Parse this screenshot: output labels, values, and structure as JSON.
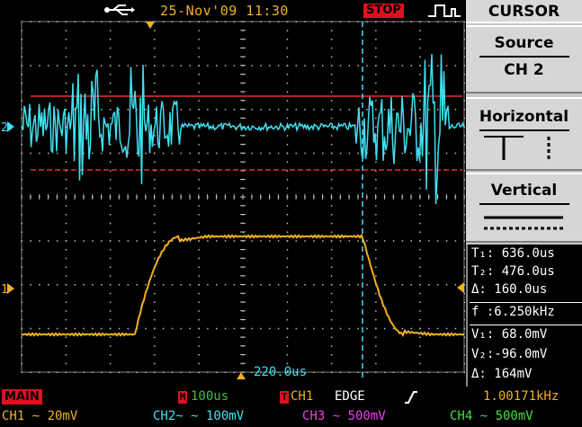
{
  "header": {
    "usb_icon": "usb-icon",
    "datetime": "25-Nov'09 11:30",
    "run_state": "STOP",
    "trigger_mode_icon": "pulse-waveform-icon"
  },
  "menu": {
    "title": "CURSOR",
    "items": [
      {
        "label": "Source",
        "value": "CH 2"
      },
      {
        "label": "Horizontal",
        "icon": "horizontal-cursor-icon"
      },
      {
        "label": "Vertical",
        "icon": "vertical-cursor-icon"
      }
    ]
  },
  "readouts": {
    "t1": "T₁: 636.0us",
    "t2": "T₂: 476.0us",
    "dt": "Δ: 160.0us",
    "freq": "f :6.250kHz",
    "v1": "V₁: 68.0mV",
    "v2": "V₂:-96.0mV",
    "dv": "Δ: 164mV"
  },
  "screen": {
    "trigger_position_label": "220.0us",
    "ch2_marker": "2",
    "ch1_marker": "1"
  },
  "status": {
    "mode": "MAIN",
    "timebase_marker": "M",
    "timebase": "100us",
    "trigger_marker": "T",
    "trigger_source": "CH1",
    "trigger_type": "EDGE",
    "trigger_edge_icon": "rising-edge-icon",
    "trigger_freq": "1.00171kHz"
  },
  "channels": [
    {
      "label": "CH1 ∼ 20mV",
      "color": "#f0b020"
    },
    {
      "label": "CH2̴ ∼ 100mV",
      "color": "#40e0f0"
    },
    {
      "label": "CH3 ∼ 500mV",
      "color": "#f040f0"
    },
    {
      "label": "CH4 ∼ 500mV",
      "color": "#40e040"
    }
  ],
  "colors": {
    "ch1": "#f0b020",
    "ch2": "#40e0f0",
    "cursor_h": "#e03030",
    "cursor_v": "#40e0f0",
    "grid": "#c0c0c0",
    "badge": "#e01020"
  }
}
